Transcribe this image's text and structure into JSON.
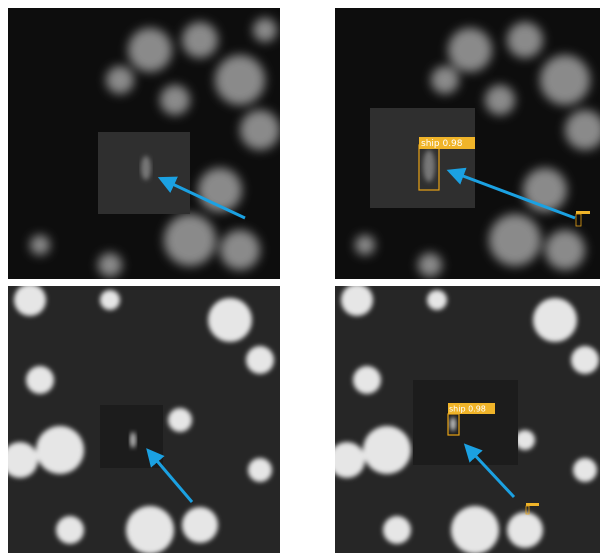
{
  "detections": [
    {
      "label": "ship 0.98"
    },
    {
      "label": "ship 0.98"
    }
  ]
}
